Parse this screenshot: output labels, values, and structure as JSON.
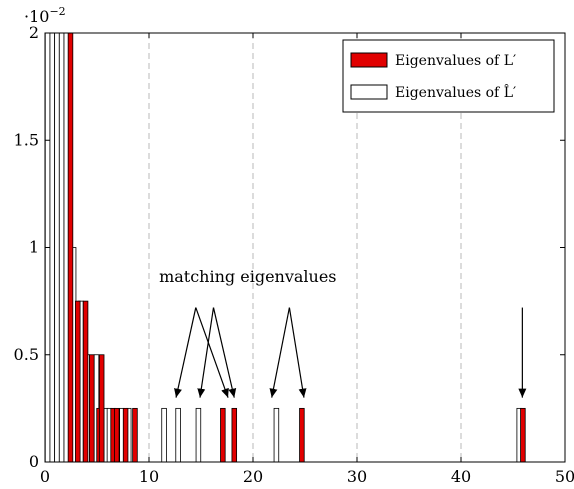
{
  "chart_data": {
    "type": "bar",
    "xlim": [
      0,
      50
    ],
    "ylim": [
      0,
      2
    ],
    "x_ticks": [
      0,
      10,
      20,
      30,
      40,
      50
    ],
    "y_ticks": [
      0,
      0.5,
      1,
      1.5,
      2
    ],
    "y_tick_labels": [
      "0",
      "0.5",
      "1",
      "1.5",
      "2"
    ],
    "y_scale_label": {
      "base": "·10",
      "exponent": "−2"
    },
    "grid": "vertical dashed",
    "legend_position": "top-right",
    "bar_width": 0.45,
    "series": [
      {
        "name": "Eigenvalues of L′",
        "color": "#e10000",
        "fill": "red",
        "bars": [
          {
            "x": 2.45,
            "y": 2.0
          },
          {
            "x": 3.15,
            "y": 0.75
          },
          {
            "x": 3.9,
            "y": 0.75
          },
          {
            "x": 4.5,
            "y": 0.5
          },
          {
            "x": 5.2,
            "y": 0.25
          },
          {
            "x": 5.45,
            "y": 0.5
          },
          {
            "x": 6.55,
            "y": 0.25
          },
          {
            "x": 6.9,
            "y": 0.25
          },
          {
            "x": 7.75,
            "y": 0.25
          },
          {
            "x": 8.65,
            "y": 0.25
          },
          {
            "x": 17.1,
            "y": 0.25
          },
          {
            "x": 18.2,
            "y": 0.25
          },
          {
            "x": 24.7,
            "y": 0.25
          },
          {
            "x": 45.95,
            "y": 0.25
          }
        ]
      },
      {
        "name": "Eigenvalues of L̂′",
        "color": "#000000",
        "fill": "white",
        "bars": [
          {
            "x": 0.25,
            "y": 2.0
          },
          {
            "x": 0.7,
            "y": 2.0
          },
          {
            "x": 1.15,
            "y": 2.0
          },
          {
            "x": 1.6,
            "y": 2.0
          },
          {
            "x": 2.05,
            "y": 2.0
          },
          {
            "x": 2.75,
            "y": 1.0
          },
          {
            "x": 3.45,
            "y": 0.75
          },
          {
            "x": 4.05,
            "y": 0.5
          },
          {
            "x": 4.95,
            "y": 0.5
          },
          {
            "x": 5.9,
            "y": 0.25
          },
          {
            "x": 6.2,
            "y": 0.25
          },
          {
            "x": 7.4,
            "y": 0.25
          },
          {
            "x": 8.05,
            "y": 0.25
          },
          {
            "x": 11.45,
            "y": 0.25
          },
          {
            "x": 12.8,
            "y": 0.25
          },
          {
            "x": 14.75,
            "y": 0.25
          },
          {
            "x": 22.25,
            "y": 0.25
          },
          {
            "x": 45.6,
            "y": 0.25
          }
        ]
      }
    ],
    "annotations": [
      {
        "text": "matching eigenvalues",
        "label_at": [
          19.5,
          0.84
        ],
        "arrows": [
          {
            "from": [
              14.5,
              0.72
            ],
            "to": [
              12.6,
              0.3
            ]
          },
          {
            "from": [
              14.5,
              0.72
            ],
            "to": [
              17.6,
              0.3
            ]
          },
          {
            "from": [
              16.2,
              0.72
            ],
            "to": [
              14.9,
              0.3
            ]
          },
          {
            "from": [
              16.2,
              0.72
            ],
            "to": [
              18.2,
              0.3
            ]
          },
          {
            "from": [
              23.5,
              0.72
            ],
            "to": [
              21.8,
              0.3
            ]
          },
          {
            "from": [
              23.5,
              0.72
            ],
            "to": [
              24.9,
              0.3
            ]
          }
        ]
      },
      {
        "text": "",
        "arrows": [
          {
            "from": [
              45.9,
              0.72
            ],
            "to": [
              45.9,
              0.3
            ]
          }
        ]
      }
    ]
  }
}
